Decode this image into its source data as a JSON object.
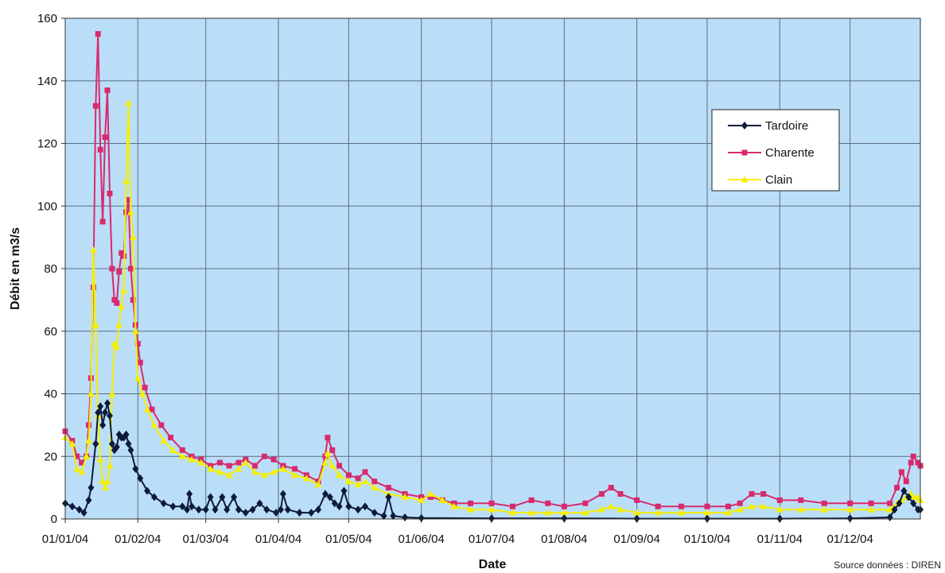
{
  "chart_data": {
    "type": "line",
    "xlabel": "Date",
    "ylabel": "Débit en m3/s",
    "source": "Source données : DIREN",
    "x_range": [
      "2004-01-01",
      "2004-12-31"
    ],
    "ylim": [
      0,
      160
    ],
    "y_ticks": [
      0,
      20,
      40,
      60,
      80,
      100,
      120,
      140,
      160
    ],
    "x_ticks": [
      {
        "label": "01/01/04",
        "date": "2004-01-01"
      },
      {
        "label": "01/02/04",
        "date": "2004-02-01"
      },
      {
        "label": "01/03/04",
        "date": "2004-03-01"
      },
      {
        "label": "01/04/04",
        "date": "2004-04-01"
      },
      {
        "label": "01/05/04",
        "date": "2004-05-01"
      },
      {
        "label": "01/06/04",
        "date": "2004-06-01"
      },
      {
        "label": "01/07/04",
        "date": "2004-07-01"
      },
      {
        "label": "01/08/04",
        "date": "2004-08-01"
      },
      {
        "label": "01/09/04",
        "date": "2004-09-01"
      },
      {
        "label": "01/10/04",
        "date": "2004-10-01"
      },
      {
        "label": "01/11/04",
        "date": "2004-11-01"
      },
      {
        "label": "01/12/04",
        "date": "2004-12-01"
      }
    ],
    "grid": true,
    "legend_position": "top-right",
    "colors": {
      "plot_background": "#bbdef8",
      "grid": "#5a6d80"
    },
    "series": [
      {
        "name": "Tardoire",
        "color": "#0d1a3a",
        "marker": "diamond",
        "points": [
          [
            "2004-01-01",
            5
          ],
          [
            "2004-01-04",
            4
          ],
          [
            "2004-01-07",
            3
          ],
          [
            "2004-01-09",
            2
          ],
          [
            "2004-01-11",
            6
          ],
          [
            "2004-01-12",
            10
          ],
          [
            "2004-01-14",
            24
          ],
          [
            "2004-01-15",
            34
          ],
          [
            "2004-01-16",
            36
          ],
          [
            "2004-01-17",
            30
          ],
          [
            "2004-01-18",
            34
          ],
          [
            "2004-01-19",
            37
          ],
          [
            "2004-01-20",
            33
          ],
          [
            "2004-01-21",
            24
          ],
          [
            "2004-01-22",
            22
          ],
          [
            "2004-01-23",
            23
          ],
          [
            "2004-01-24",
            27
          ],
          [
            "2004-01-25",
            26
          ],
          [
            "2004-01-26",
            26
          ],
          [
            "2004-01-27",
            27
          ],
          [
            "2004-01-28",
            24
          ],
          [
            "2004-01-29",
            22
          ],
          [
            "2004-01-31",
            16
          ],
          [
            "2004-02-02",
            13
          ],
          [
            "2004-02-05",
            9
          ],
          [
            "2004-02-08",
            7
          ],
          [
            "2004-02-12",
            5
          ],
          [
            "2004-02-16",
            4
          ],
          [
            "2004-02-20",
            4
          ],
          [
            "2004-02-22",
            3
          ],
          [
            "2004-02-23",
            8
          ],
          [
            "2004-02-24",
            4
          ],
          [
            "2004-02-27",
            3
          ],
          [
            "2004-03-01",
            3
          ],
          [
            "2004-03-03",
            7
          ],
          [
            "2004-03-05",
            3
          ],
          [
            "2004-03-08",
            7
          ],
          [
            "2004-03-10",
            3
          ],
          [
            "2004-03-13",
            7
          ],
          [
            "2004-03-15",
            3
          ],
          [
            "2004-03-18",
            2
          ],
          [
            "2004-03-21",
            3
          ],
          [
            "2004-03-24",
            5
          ],
          [
            "2004-03-27",
            3
          ],
          [
            "2004-03-31",
            2
          ],
          [
            "2004-04-02",
            3
          ],
          [
            "2004-04-03",
            8
          ],
          [
            "2004-04-05",
            3
          ],
          [
            "2004-04-10",
            2
          ],
          [
            "2004-04-15",
            2
          ],
          [
            "2004-04-18",
            3
          ],
          [
            "2004-04-21",
            8
          ],
          [
            "2004-04-23",
            7
          ],
          [
            "2004-04-25",
            5
          ],
          [
            "2004-04-27",
            4
          ],
          [
            "2004-04-29",
            9
          ],
          [
            "2004-05-01",
            4
          ],
          [
            "2004-05-05",
            3
          ],
          [
            "2004-05-08",
            4
          ],
          [
            "2004-05-12",
            2
          ],
          [
            "2004-05-16",
            1
          ],
          [
            "2004-05-18",
            7
          ],
          [
            "2004-05-20",
            1
          ],
          [
            "2004-05-25",
            0.5
          ],
          [
            "2004-06-01",
            0.3
          ],
          [
            "2004-07-01",
            0.2
          ],
          [
            "2004-08-01",
            0.2
          ],
          [
            "2004-09-01",
            0.1
          ],
          [
            "2004-10-01",
            0.1
          ],
          [
            "2004-11-01",
            0.1
          ],
          [
            "2004-12-01",
            0.2
          ],
          [
            "2004-12-18",
            0.5
          ],
          [
            "2004-12-20",
            3
          ],
          [
            "2004-12-22",
            5
          ],
          [
            "2004-12-24",
            9
          ],
          [
            "2004-12-26",
            7
          ],
          [
            "2004-12-28",
            5
          ],
          [
            "2004-12-30",
            3
          ],
          [
            "2004-12-31",
            3
          ]
        ]
      },
      {
        "name": "Charente",
        "color": "#d82a6e",
        "marker": "square",
        "points": [
          [
            "2004-01-01",
            28
          ],
          [
            "2004-01-04",
            25
          ],
          [
            "2004-01-06",
            20
          ],
          [
            "2004-01-08",
            18
          ],
          [
            "2004-01-10",
            20
          ],
          [
            "2004-01-11",
            30
          ],
          [
            "2004-01-12",
            45
          ],
          [
            "2004-01-13",
            74
          ],
          [
            "2004-01-14",
            132
          ],
          [
            "2004-01-15",
            155
          ],
          [
            "2004-01-16",
            118
          ],
          [
            "2004-01-17",
            95
          ],
          [
            "2004-01-18",
            122
          ],
          [
            "2004-01-19",
            137
          ],
          [
            "2004-01-20",
            104
          ],
          [
            "2004-01-21",
            80
          ],
          [
            "2004-01-22",
            70
          ],
          [
            "2004-01-23",
            69
          ],
          [
            "2004-01-24",
            79
          ],
          [
            "2004-01-25",
            85
          ],
          [
            "2004-01-26",
            84
          ],
          [
            "2004-01-27",
            98
          ],
          [
            "2004-01-28",
            102
          ],
          [
            "2004-01-29",
            80
          ],
          [
            "2004-01-30",
            70
          ],
          [
            "2004-01-31",
            62
          ],
          [
            "2004-02-01",
            56
          ],
          [
            "2004-02-02",
            50
          ],
          [
            "2004-02-04",
            42
          ],
          [
            "2004-02-07",
            35
          ],
          [
            "2004-02-11",
            30
          ],
          [
            "2004-02-15",
            26
          ],
          [
            "2004-02-20",
            22
          ],
          [
            "2004-02-24",
            20
          ],
          [
            "2004-02-28",
            19
          ],
          [
            "2004-03-03",
            17
          ],
          [
            "2004-03-07",
            18
          ],
          [
            "2004-03-11",
            17
          ],
          [
            "2004-03-15",
            18
          ],
          [
            "2004-03-18",
            19
          ],
          [
            "2004-03-22",
            17
          ],
          [
            "2004-03-26",
            20
          ],
          [
            "2004-03-30",
            19
          ],
          [
            "2004-04-03",
            17
          ],
          [
            "2004-04-08",
            16
          ],
          [
            "2004-04-13",
            14
          ],
          [
            "2004-04-18",
            12
          ],
          [
            "2004-04-21",
            20
          ],
          [
            "2004-04-22",
            26
          ],
          [
            "2004-04-24",
            22
          ],
          [
            "2004-04-27",
            17
          ],
          [
            "2004-05-01",
            14
          ],
          [
            "2004-05-05",
            13
          ],
          [
            "2004-05-08",
            15
          ],
          [
            "2004-05-12",
            12
          ],
          [
            "2004-05-18",
            10
          ],
          [
            "2004-05-25",
            8
          ],
          [
            "2004-06-01",
            7
          ],
          [
            "2004-06-05",
            7
          ],
          [
            "2004-06-10",
            6
          ],
          [
            "2004-06-15",
            5
          ],
          [
            "2004-06-22",
            5
          ],
          [
            "2004-07-01",
            5
          ],
          [
            "2004-07-10",
            4
          ],
          [
            "2004-07-18",
            6
          ],
          [
            "2004-07-25",
            5
          ],
          [
            "2004-08-01",
            4
          ],
          [
            "2004-08-10",
            5
          ],
          [
            "2004-08-17",
            8
          ],
          [
            "2004-08-21",
            10
          ],
          [
            "2004-08-25",
            8
          ],
          [
            "2004-09-01",
            6
          ],
          [
            "2004-09-10",
            4
          ],
          [
            "2004-09-20",
            4
          ],
          [
            "2004-10-01",
            4
          ],
          [
            "2004-10-10",
            4
          ],
          [
            "2004-10-15",
            5
          ],
          [
            "2004-10-20",
            8
          ],
          [
            "2004-10-25",
            8
          ],
          [
            "2004-11-01",
            6
          ],
          [
            "2004-11-10",
            6
          ],
          [
            "2004-11-20",
            5
          ],
          [
            "2004-12-01",
            5
          ],
          [
            "2004-12-10",
            5
          ],
          [
            "2004-12-18",
            5
          ],
          [
            "2004-12-21",
            10
          ],
          [
            "2004-12-23",
            15
          ],
          [
            "2004-12-25",
            12
          ],
          [
            "2004-12-27",
            18
          ],
          [
            "2004-12-28",
            20
          ],
          [
            "2004-12-30",
            18
          ],
          [
            "2004-12-31",
            17
          ]
        ]
      },
      {
        "name": "Clain",
        "color": "#f5f000",
        "marker": "triangle",
        "points": [
          [
            "2004-01-01",
            26
          ],
          [
            "2004-01-04",
            24
          ],
          [
            "2004-01-06",
            16
          ],
          [
            "2004-01-08",
            15
          ],
          [
            "2004-01-10",
            20
          ],
          [
            "2004-01-11",
            25
          ],
          [
            "2004-01-12",
            40
          ],
          [
            "2004-01-13",
            86
          ],
          [
            "2004-01-14",
            62
          ],
          [
            "2004-01-15",
            33
          ],
          [
            "2004-01-16",
            19
          ],
          [
            "2004-01-17",
            12
          ],
          [
            "2004-01-18",
            10
          ],
          [
            "2004-01-19",
            12
          ],
          [
            "2004-01-20",
            17
          ],
          [
            "2004-01-21",
            40
          ],
          [
            "2004-01-22",
            56
          ],
          [
            "2004-01-23",
            55
          ],
          [
            "2004-01-24",
            62
          ],
          [
            "2004-01-25",
            68
          ],
          [
            "2004-01-26",
            73
          ],
          [
            "2004-01-27",
            108
          ],
          [
            "2004-01-28",
            133
          ],
          [
            "2004-01-29",
            98
          ],
          [
            "2004-01-30",
            90
          ],
          [
            "2004-01-31",
            60
          ],
          [
            "2004-02-01",
            45
          ],
          [
            "2004-02-03",
            40
          ],
          [
            "2004-02-05",
            35
          ],
          [
            "2004-02-08",
            30
          ],
          [
            "2004-02-12",
            25
          ],
          [
            "2004-02-16",
            22
          ],
          [
            "2004-02-20",
            20
          ],
          [
            "2004-02-24",
            19
          ],
          [
            "2004-02-28",
            18
          ],
          [
            "2004-03-03",
            16
          ],
          [
            "2004-03-07",
            15
          ],
          [
            "2004-03-11",
            14
          ],
          [
            "2004-03-15",
            16
          ],
          [
            "2004-03-18",
            18
          ],
          [
            "2004-03-22",
            15
          ],
          [
            "2004-03-26",
            14
          ],
          [
            "2004-03-30",
            15
          ],
          [
            "2004-04-03",
            16
          ],
          [
            "2004-04-08",
            14
          ],
          [
            "2004-04-13",
            13
          ],
          [
            "2004-04-18",
            11
          ],
          [
            "2004-04-21",
            18
          ],
          [
            "2004-04-22",
            21
          ],
          [
            "2004-04-24",
            17
          ],
          [
            "2004-04-27",
            14
          ],
          [
            "2004-05-01",
            12
          ],
          [
            "2004-05-05",
            11
          ],
          [
            "2004-05-08",
            12
          ],
          [
            "2004-05-12",
            10
          ],
          [
            "2004-05-18",
            8
          ],
          [
            "2004-05-25",
            7
          ],
          [
            "2004-06-01",
            6
          ],
          [
            "2004-06-05",
            8
          ],
          [
            "2004-06-10",
            6
          ],
          [
            "2004-06-15",
            4
          ],
          [
            "2004-06-22",
            3
          ],
          [
            "2004-07-01",
            3
          ],
          [
            "2004-07-10",
            2
          ],
          [
            "2004-07-18",
            2
          ],
          [
            "2004-07-25",
            2
          ],
          [
            "2004-08-01",
            2
          ],
          [
            "2004-08-10",
            2
          ],
          [
            "2004-08-17",
            3
          ],
          [
            "2004-08-21",
            4
          ],
          [
            "2004-08-25",
            3
          ],
          [
            "2004-09-01",
            2
          ],
          [
            "2004-09-10",
            2
          ],
          [
            "2004-09-20",
            2
          ],
          [
            "2004-10-01",
            2
          ],
          [
            "2004-10-10",
            2
          ],
          [
            "2004-10-15",
            3
          ],
          [
            "2004-10-20",
            4
          ],
          [
            "2004-10-25",
            4
          ],
          [
            "2004-11-01",
            3
          ],
          [
            "2004-11-10",
            3
          ],
          [
            "2004-11-20",
            3
          ],
          [
            "2004-12-01",
            3
          ],
          [
            "2004-12-10",
            3
          ],
          [
            "2004-12-18",
            3
          ],
          [
            "2004-12-21",
            5
          ],
          [
            "2004-12-23",
            6
          ],
          [
            "2004-12-25",
            7
          ],
          [
            "2004-12-27",
            8
          ],
          [
            "2004-12-28",
            7
          ],
          [
            "2004-12-30",
            7
          ],
          [
            "2004-12-31",
            6
          ]
        ]
      }
    ]
  }
}
